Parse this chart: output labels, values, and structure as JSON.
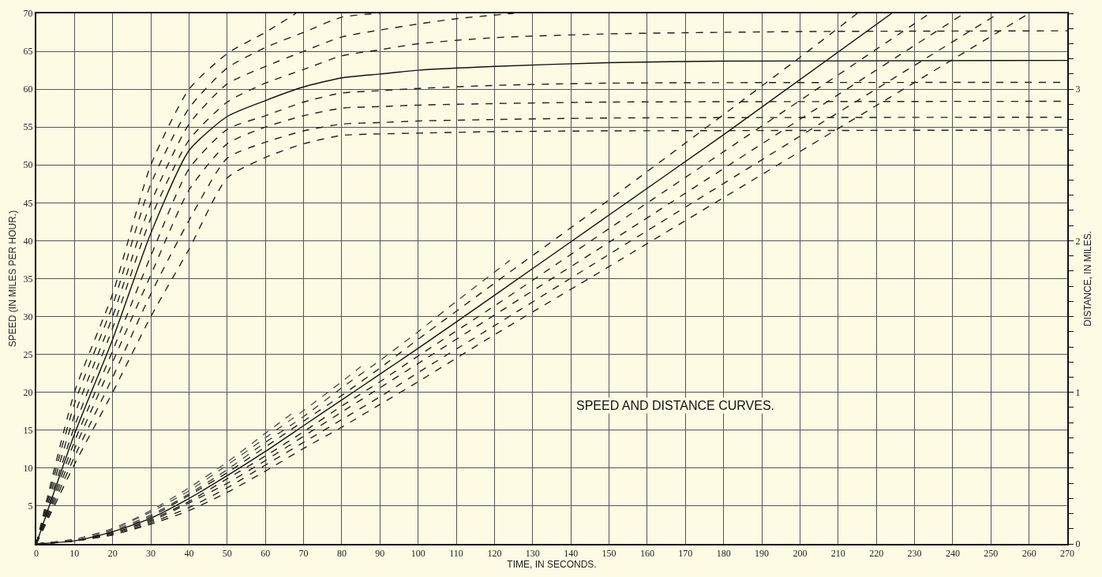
{
  "chart_data": {
    "type": "line",
    "xlabel": "TIME, IN SECONDS.",
    "ylabel": "SPEED (IN MILES PER HOUR.)",
    "y2label": "DISTANCE, IN MILES.",
    "annotations": [
      "SPEED AND DISTANCE CURVES."
    ],
    "xlim": [
      0,
      270
    ],
    "xticks": [
      0,
      10,
      20,
      30,
      40,
      50,
      60,
      70,
      80,
      90,
      100,
      110,
      120,
      130,
      140,
      150,
      160,
      170,
      180,
      190,
      200,
      210,
      220,
      230,
      240,
      250,
      260,
      270
    ],
    "ylim": [
      0,
      70
    ],
    "yticks": [
      {
        "value": 0,
        "label": null
      },
      5,
      10,
      15,
      20,
      25,
      30,
      35,
      40,
      45,
      50,
      55,
      60,
      65,
      70
    ],
    "y2lim": [
      0,
      3.5
    ],
    "y2ticks": [
      0,
      {
        "value": 0.1,
        "label": null
      },
      {
        "value": 0.2,
        "label": null
      },
      {
        "value": 0.3,
        "label": null
      },
      {
        "value": 0.4,
        "label": null
      },
      {
        "value": 0.5,
        "label": null
      },
      {
        "value": 0.6,
        "label": null
      },
      {
        "value": 0.7,
        "label": null
      },
      {
        "value": 0.8,
        "label": null
      },
      {
        "value": 0.9,
        "label": null
      },
      1,
      {
        "value": 1.1,
        "label": null
      },
      {
        "value": 1.2,
        "label": null
      },
      {
        "value": 1.3,
        "label": null
      },
      {
        "value": 1.4,
        "label": null
      },
      {
        "value": 1.5,
        "label": null
      },
      {
        "value": 1.6,
        "label": null
      },
      {
        "value": 1.7,
        "label": null
      },
      {
        "value": 1.8,
        "label": null
      },
      {
        "value": 1.9,
        "label": null
      },
      2,
      {
        "value": 2.1,
        "label": null
      },
      {
        "value": 2.2,
        "label": null
      },
      {
        "value": 2.3,
        "label": null
      },
      {
        "value": 2.4,
        "label": null
      },
      {
        "value": 2.5,
        "label": null
      },
      {
        "value": 2.6,
        "label": null
      },
      {
        "value": 2.7,
        "label": null
      },
      {
        "value": 2.8,
        "label": null
      },
      {
        "value": 2.9,
        "label": null
      },
      3,
      {
        "value": 3.1,
        "label": null
      },
      {
        "value": 3.2,
        "label": null
      },
      {
        "value": 3.3,
        "label": null
      },
      {
        "value": 3.4,
        "label": null
      },
      {
        "value": 3.5,
        "label": null
      }
    ],
    "grid": true,
    "series": [
      {
        "color": "#222222",
        "line_style": "dashed",
        "x": [
          0,
          10,
          20,
          30,
          40,
          50,
          60,
          68
        ],
        "values": [
          0,
          20,
          33,
          50,
          60,
          64.7,
          67.5,
          70
        ]
      },
      {
        "color": "#222222",
        "line_style": "dashed",
        "x": [
          0,
          10,
          20,
          30,
          40,
          50,
          60,
          70,
          80,
          90
        ],
        "values": [
          0,
          18.5,
          31.5,
          47.5,
          57.5,
          62.8,
          65.5,
          67.5,
          69.5,
          70
        ]
      },
      {
        "color": "#222222",
        "line_style": "dashed",
        "x": [
          0,
          10,
          20,
          30,
          40,
          50,
          60,
          70,
          80,
          90,
          100,
          110,
          125
        ],
        "values": [
          0,
          17,
          30,
          45,
          55.4,
          60.7,
          63,
          65,
          66.9,
          67.8,
          68.6,
          69.3,
          70
        ]
      },
      {
        "color": "#222222",
        "line_style": "dashed",
        "x": [
          0,
          10,
          20,
          30,
          40,
          50,
          60,
          70,
          80,
          90,
          100,
          120,
          150,
          200,
          270
        ],
        "values": [
          0,
          15.5,
          28.5,
          43,
          53.3,
          58.3,
          60.8,
          62.6,
          64.4,
          65.2,
          66,
          66.8,
          67.3,
          67.6,
          67.7
        ]
      },
      {
        "color": "#111111",
        "line_style": "solid",
        "x": [
          0,
          10,
          20,
          30,
          40,
          50,
          60,
          70,
          80,
          90,
          100,
          120,
          150,
          180,
          270
        ],
        "values": [
          0,
          14.5,
          27,
          41,
          51.9,
          56.4,
          58.5,
          60.3,
          61.5,
          62,
          62.5,
          63,
          63.5,
          63.7,
          63.8
        ]
      },
      {
        "color": "#222222",
        "line_style": "dashed",
        "x": [
          0,
          10,
          20,
          30,
          40,
          50,
          60,
          70,
          80,
          90,
          100,
          120,
          150,
          270
        ],
        "values": [
          0,
          13.5,
          25.5,
          38,
          49.5,
          54.7,
          56.5,
          58.3,
          59.5,
          59.8,
          60.1,
          60.5,
          60.8,
          60.9
        ]
      },
      {
        "color": "#222222",
        "line_style": "dashed",
        "x": [
          0,
          10,
          20,
          30,
          40,
          50,
          60,
          70,
          80,
          90,
          100,
          120,
          150,
          270
        ],
        "values": [
          0,
          12.5,
          24,
          35.5,
          46.7,
          52.8,
          55,
          56.5,
          57.5,
          57.7,
          57.9,
          58.1,
          58.3,
          58.4
        ]
      },
      {
        "color": "#222222",
        "line_style": "dashed",
        "x": [
          0,
          10,
          20,
          30,
          40,
          50,
          60,
          70,
          80,
          90,
          100,
          120,
          150,
          270
        ],
        "values": [
          0,
          11.5,
          22,
          33,
          42.7,
          50.9,
          53,
          54.5,
          55.4,
          55.6,
          55.8,
          56,
          56.2,
          56.3
        ]
      },
      {
        "color": "#222222",
        "line_style": "dashed",
        "x": [
          0,
          10,
          20,
          30,
          40,
          50,
          60,
          70,
          80,
          90,
          100,
          120,
          150,
          270
        ],
        "values": [
          0,
          10.5,
          20,
          30,
          38.9,
          48.3,
          51,
          52.8,
          53.9,
          54.1,
          54.2,
          54.4,
          54.5,
          54.6
        ]
      },
      {
        "axis": "y2",
        "color": "#555555",
        "line_style": "dashed",
        "x": [
          0,
          10,
          20,
          30,
          40,
          50,
          60,
          67.5
        ],
        "values": [
          0,
          0.03,
          0.1,
          0.22,
          0.37,
          0.54,
          0.73,
          0.87
        ]
      },
      {
        "axis": "y2",
        "color": "#555555",
        "line_style": "dashed",
        "x": [
          0,
          10,
          20,
          30,
          40,
          50,
          60,
          70,
          80,
          85
        ],
        "values": [
          0,
          0.03,
          0.1,
          0.21,
          0.35,
          0.52,
          0.7,
          0.88,
          1.07,
          1.17
        ]
      },
      {
        "axis": "y2",
        "color": "#444444",
        "line_style": "dashed",
        "x": [
          0,
          10,
          20,
          30,
          40,
          50,
          60,
          70,
          80,
          90,
          100,
          110,
          124
        ],
        "values": [
          0,
          0.02,
          0.09,
          0.19,
          0.33,
          0.49,
          0.67,
          0.84,
          1.03,
          1.21,
          1.4,
          1.6,
          1.87
        ]
      },
      {
        "axis": "y2",
        "color": "#222222",
        "line_style": "dashed",
        "x": [
          0,
          10,
          20,
          30,
          40,
          50,
          60,
          70,
          80,
          90,
          100,
          120,
          150,
          200,
          215
        ],
        "values": [
          0,
          0.02,
          0.08,
          0.18,
          0.32,
          0.47,
          0.64,
          0.81,
          0.98,
          1.16,
          1.35,
          1.72,
          2.27,
          3.21,
          3.5
        ]
      },
      {
        "axis": "y2",
        "color": "#111111",
        "line_style": "solid",
        "x": [
          0,
          10,
          20,
          30,
          40,
          50,
          60,
          70,
          80,
          90,
          100,
          120,
          150,
          180,
          224
        ],
        "values": [
          0,
          0.02,
          0.08,
          0.17,
          0.3,
          0.45,
          0.61,
          0.78,
          0.95,
          1.12,
          1.29,
          1.64,
          2.17,
          2.7,
          3.5
        ]
      },
      {
        "axis": "y2",
        "color": "#222222",
        "line_style": "dashed",
        "x": [
          0,
          10,
          20,
          30,
          40,
          50,
          60,
          70,
          80,
          90,
          100,
          120,
          150,
          234
        ],
        "values": [
          0,
          0.02,
          0.07,
          0.16,
          0.28,
          0.43,
          0.58,
          0.74,
          0.91,
          1.07,
          1.24,
          1.57,
          2.08,
          3.5
        ]
      },
      {
        "axis": "y2",
        "color": "#222222",
        "line_style": "dashed",
        "x": [
          0,
          10,
          20,
          30,
          40,
          50,
          60,
          70,
          80,
          90,
          100,
          120,
          150,
          243
        ],
        "values": [
          0,
          0.02,
          0.07,
          0.15,
          0.27,
          0.4,
          0.55,
          0.71,
          0.87,
          1.03,
          1.19,
          1.51,
          1.99,
          3.5
        ]
      },
      {
        "axis": "y2",
        "color": "#222222",
        "line_style": "dashed",
        "x": [
          0,
          10,
          20,
          30,
          40,
          50,
          60,
          70,
          80,
          90,
          100,
          120,
          150,
          252
        ],
        "values": [
          0,
          0.02,
          0.06,
          0.14,
          0.24,
          0.37,
          0.52,
          0.67,
          0.82,
          0.97,
          1.13,
          1.44,
          1.91,
          3.5
        ]
      },
      {
        "axis": "y2",
        "color": "#222222",
        "line_style": "dashed",
        "x": [
          0,
          10,
          20,
          30,
          40,
          50,
          60,
          70,
          80,
          90,
          100,
          120,
          150,
          260
        ],
        "values": [
          0,
          0.02,
          0.06,
          0.13,
          0.22,
          0.34,
          0.48,
          0.63,
          0.77,
          0.92,
          1.07,
          1.38,
          1.83,
          3.5
        ]
      }
    ]
  }
}
